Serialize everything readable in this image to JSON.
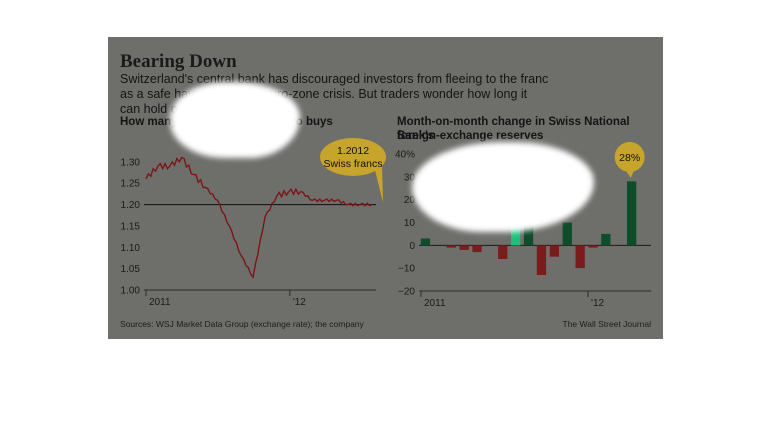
{
  "title": "Bearing Down",
  "deck": "Switzerland's central bank has discouraged investors from fleeing to the franc as a safe haven amid the euro-zone crisis. But traders wonder how long it can hold out.",
  "source": "Sources: WSJ Market Data Group (exchange rate); the company",
  "credit": "The Wall Street Journal",
  "colors": {
    "panel": "#6e6f6b",
    "line": "#7a1616",
    "bar_pos": "#0e4d2a",
    "bar_neg": "#7a1c1c",
    "bar_highlight": "#21c07a",
    "bubble": "#c7a42c"
  },
  "chart_data": [
    {
      "type": "line",
      "title": "How many Swiss francs one euro buys",
      "x": [
        "2010-12",
        "2011-01",
        "2011-02",
        "2011-03",
        "2011-04",
        "2011-05",
        "2011-06",
        "2011-07",
        "2011-08",
        "2011-08",
        "2011-09",
        "2011-10",
        "2011-11",
        "2011-12",
        "2012-01",
        "2012-02",
        "2012-03",
        "2012-04",
        "2012-05",
        "2012-06"
      ],
      "values": [
        1.26,
        1.29,
        1.29,
        1.31,
        1.27,
        1.24,
        1.21,
        1.15,
        1.08,
        1.03,
        1.17,
        1.22,
        1.23,
        1.23,
        1.21,
        1.21,
        1.21,
        1.2,
        1.2,
        1.2
      ],
      "ylim": [
        1.0,
        1.33
      ],
      "yticks": [
        "1.30",
        "1.25",
        "1.20",
        "1.15",
        "1.10",
        "1.05",
        "1.00"
      ],
      "xticks": [
        "2011",
        "'12"
      ],
      "reference_line": 1.2,
      "annotation": {
        "line1": "1.2012",
        "line2": "Swiss francs"
      }
    },
    {
      "type": "bar",
      "title_line1": "Month-on-month change in Swiss National Bank's",
      "title_line2": "foreign-exchange reserves",
      "categories": [
        "2010-12",
        "2011-01",
        "2011-02",
        "2011-03",
        "2011-04",
        "2011-05",
        "2011-06",
        "2011-07",
        "2011-08",
        "2011-09",
        "2011-10",
        "2011-11",
        "2011-12",
        "2012-01",
        "2012-02",
        "2012-03",
        "2012-04",
        "2012-05"
      ],
      "values": [
        3,
        0,
        -1,
        -2,
        -3,
        0,
        -6,
        39,
        11,
        -13,
        -5,
        10,
        -10,
        -1,
        5,
        0,
        28,
        0
      ],
      "ylim": [
        -20,
        40
      ],
      "yticks": [
        "40%",
        "30",
        "20",
        "10",
        "0",
        "−10",
        "−20"
      ],
      "xticks": [
        "2011",
        "'12"
      ],
      "highlight_index": 7,
      "annotation": "28%"
    }
  ]
}
